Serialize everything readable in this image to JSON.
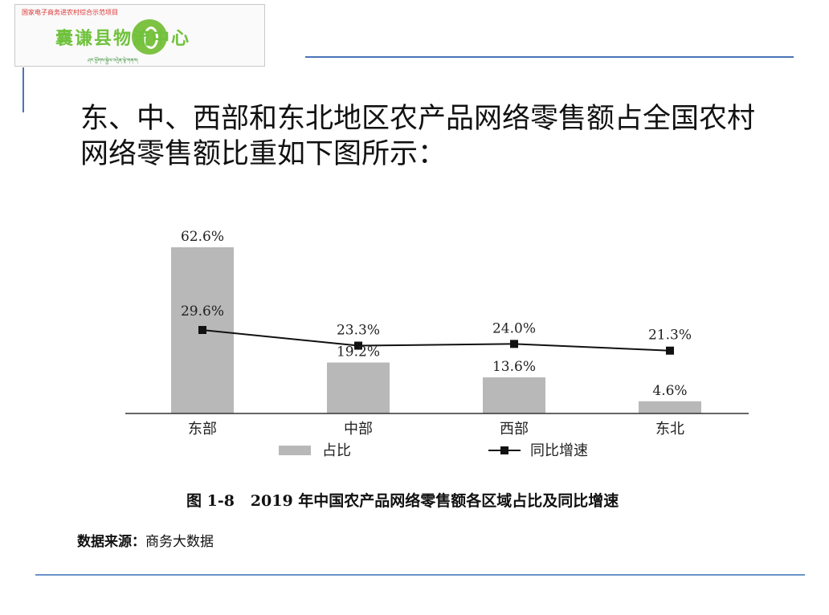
{
  "logo": {
    "top_text": "国家电子商务进农村综合示范项目",
    "title": "囊谦县物流中心",
    "bottom_text": "ཤར་ཕྱོགས་སྐྱེལ་འདྲེན་ལྟེ་གནས།"
  },
  "heading": {
    "line1": "东、中、西部和东北地区农产品网络零售额占全国农村",
    "line2": "网络零售额比重如下图所示："
  },
  "chart_data": {
    "type": "bar",
    "categories": [
      "东部",
      "中部",
      "西部",
      "东北"
    ],
    "series": [
      {
        "name": "占比",
        "type": "bar",
        "values": [
          62.6,
          19.2,
          13.6,
          4.6
        ],
        "labels": [
          "62.6%",
          "19.2%",
          "13.6%",
          "4.6%"
        ],
        "color": "#b8b8b8"
      },
      {
        "name": "同比增速",
        "type": "line",
        "values": [
          29.6,
          23.3,
          24.0,
          21.3
        ],
        "labels": [
          "29.6%",
          "23.3%",
          "24.0%",
          "21.3%"
        ],
        "color": "#111111"
      }
    ],
    "title": "图 1-8   2019 年中国农产品网络零售额各区域占比及同比增速",
    "legend_position": "bottom",
    "grid": false,
    "ylim": [
      0,
      65
    ]
  },
  "source": {
    "label": "数据来源：",
    "text": "商务大数据"
  }
}
